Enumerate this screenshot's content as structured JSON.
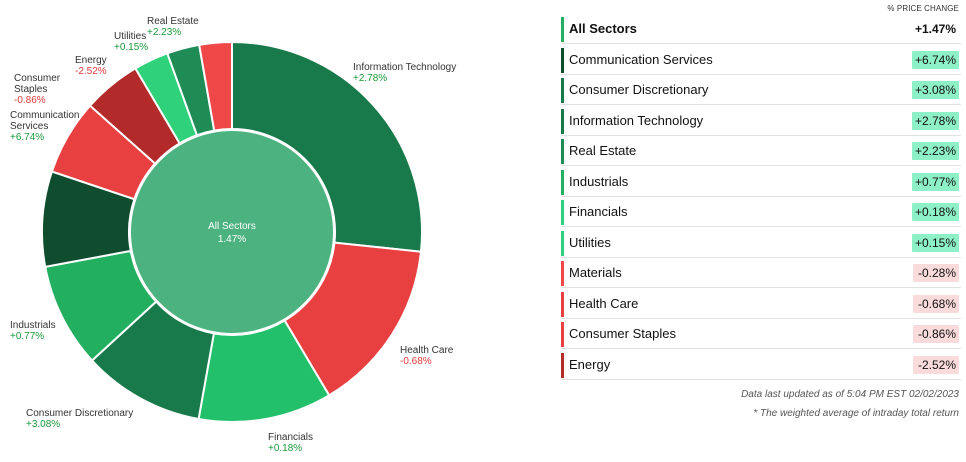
{
  "colors": {
    "dark_green": "#0f4d2e",
    "green": "#187a4b",
    "mid_green": "#1f9e56",
    "light_green": "#22c06a",
    "pale_green": "#2fd27a",
    "red": "#e84040",
    "dark_red": "#b22a2a",
    "center": "#4cb27f",
    "pos_text": "#1a9a3a",
    "neg_text": "#e03a3a",
    "pos_bg": "#8ef0c6",
    "neg_bg": "#fadbdb"
  },
  "donut_center": {
    "label": "All Sectors",
    "value": "1.47%"
  },
  "chart_data": {
    "type": "pie",
    "title": "",
    "center_label": "All Sectors 1.47%",
    "slices": [
      {
        "name": "Information Technology",
        "change": "+2.78%",
        "weight": 27.0,
        "color": "#187a4b"
      },
      {
        "name": "Health Care",
        "change": "-0.68%",
        "weight": 15.0,
        "color": "#e84040"
      },
      {
        "name": "Financials",
        "change": "+0.18%",
        "weight": 11.5,
        "color": "#22c06a"
      },
      {
        "name": "Consumer Discretionary",
        "change": "+3.08%",
        "weight": 10.5,
        "color": "#187a4b"
      },
      {
        "name": "Industrials",
        "change": "+0.77%",
        "weight": 9.0,
        "color": "#22b060"
      },
      {
        "name": "Communication Services",
        "change": "+6.74%",
        "weight": 8.2,
        "color": "#0f4d2e"
      },
      {
        "name": "Consumer Staples",
        "change": "-0.86%",
        "weight": 6.5,
        "color": "#e84040"
      },
      {
        "name": "Energy",
        "change": "-2.52%",
        "weight": 5.0,
        "color": "#b22a2a"
      },
      {
        "name": "Utilities",
        "change": "+0.15%",
        "weight": 3.0,
        "color": "#2fd27a"
      },
      {
        "name": "Real Estate",
        "change": "+2.23%",
        "weight": 2.8,
        "color": "#1f8c55"
      },
      {
        "name": "Materials",
        "change": "-0.28%",
        "weight": 2.8,
        "color": "#f04848"
      }
    ]
  },
  "donut_labels": [
    {
      "name": "Information Technology",
      "value": "+2.78%",
      "sign": "pos"
    },
    {
      "name": "Health Care",
      "value": "-0.68%",
      "sign": "neg"
    },
    {
      "name": "Financials",
      "value": "+0.18%",
      "sign": "pos"
    },
    {
      "name": "Consumer Discretionary",
      "value": "+3.08%",
      "sign": "pos"
    },
    {
      "name": "Industrials",
      "value": "+0.77%",
      "sign": "pos"
    },
    {
      "name": "Communication\nServices",
      "value": "+6.74%",
      "sign": "pos"
    },
    {
      "name": "Consumer\nStaples",
      "value": "-0.86%",
      "sign": "neg"
    },
    {
      "name": "Energy",
      "value": "-2.52%",
      "sign": "neg"
    },
    {
      "name": "Utilities",
      "value": "+0.15%",
      "sign": "pos"
    },
    {
      "name": "Real Estate",
      "value": "+2.23%",
      "sign": "pos"
    }
  ],
  "table": {
    "header": "% PRICE CHANGE",
    "rows": [
      {
        "name": "All Sectors",
        "value": "+1.47%",
        "bar": "#22b060",
        "bg": "transparent",
        "total": true
      },
      {
        "name": "Communication Services",
        "value": "+6.74%",
        "bar": "#0f4d2e",
        "bg": "#8ef0c6"
      },
      {
        "name": "Consumer Discretionary",
        "value": "+3.08%",
        "bar": "#187a4b",
        "bg": "#8ef0c6"
      },
      {
        "name": "Information Technology",
        "value": "+2.78%",
        "bar": "#187a4b",
        "bg": "#8ef0c6"
      },
      {
        "name": "Real Estate",
        "value": "+2.23%",
        "bar": "#1f8c55",
        "bg": "#8ef0c6"
      },
      {
        "name": "Industrials",
        "value": "+0.77%",
        "bar": "#22b060",
        "bg": "#8ef0c6"
      },
      {
        "name": "Financials",
        "value": "+0.18%",
        "bar": "#2fd27a",
        "bg": "#8ef0c6"
      },
      {
        "name": "Utilities",
        "value": "+0.15%",
        "bar": "#2fd27a",
        "bg": "#8ef0c6"
      },
      {
        "name": "Materials",
        "value": "-0.28%",
        "bar": "#f04848",
        "bg": "#fadbdb"
      },
      {
        "name": "Health Care",
        "value": "-0.68%",
        "bar": "#e84040",
        "bg": "#fadbdb"
      },
      {
        "name": "Consumer Staples",
        "value": "-0.86%",
        "bar": "#e84040",
        "bg": "#fadbdb"
      },
      {
        "name": "Energy",
        "value": "-2.52%",
        "bar": "#b22a2a",
        "bg": "#fadbdb"
      }
    ],
    "note_updated": "Data last updated as of 5:04 PM EST 02/02/2023",
    "note_weighted": "* The weighted average of intraday total return"
  }
}
